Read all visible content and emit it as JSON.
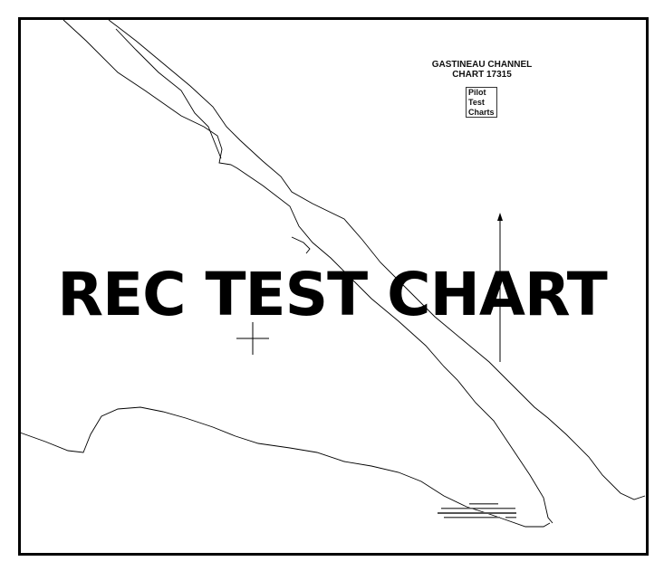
{
  "chart_title": {
    "line1": "GASTINEAU CHANNEL",
    "line2": "CHART 17315"
  },
  "logo": {
    "lines": [
      "Pilot",
      "Test",
      "Charts"
    ]
  },
  "watermark": "REC TEST CHART",
  "colors": {
    "ink": "#000000",
    "background": "#ffffff"
  },
  "icons": {
    "north_arrow": "arrow-up-icon",
    "position_mark": "crosshair-icon"
  }
}
